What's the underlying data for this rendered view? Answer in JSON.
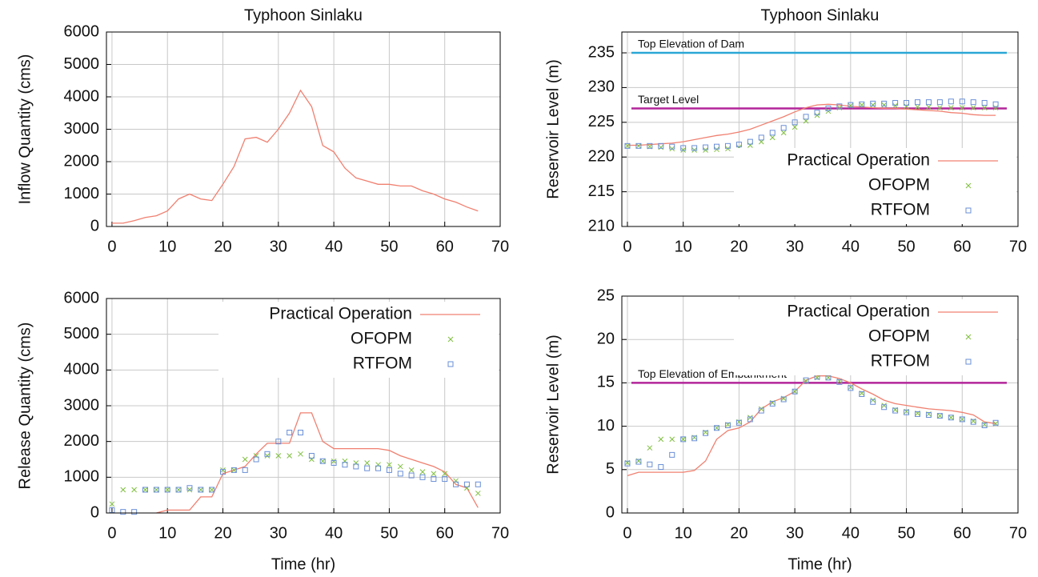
{
  "chart_data": [
    {
      "type": "line",
      "title": "Typhoon Sinlaku",
      "ylabel": "Inflow Quantity (cms)",
      "xlim": [
        -1,
        70
      ],
      "xticks": [
        0,
        10,
        20,
        30,
        40,
        50,
        60,
        70
      ],
      "ylim": [
        0,
        6000
      ],
      "yticks": [
        0,
        1000,
        2000,
        3000,
        4000,
        5000,
        6000
      ],
      "grid": true,
      "x": [
        0,
        2,
        4,
        6,
        8,
        10,
        12,
        14,
        16,
        18,
        20,
        22,
        24,
        26,
        28,
        30,
        32,
        34,
        36,
        38,
        40,
        42,
        44,
        46,
        48,
        50,
        52,
        54,
        56,
        58,
        60,
        62,
        64,
        66
      ],
      "series": [
        {
          "name": null,
          "style": "line",
          "color": "#f08070",
          "values": [
            100,
            100,
            180,
            280,
            330,
            480,
            850,
            1000,
            850,
            800,
            1300,
            1850,
            2700,
            2750,
            2600,
            3000,
            3500,
            4200,
            3700,
            2500,
            2300,
            1800,
            1500,
            1400,
            1300,
            1300,
            1250,
            1250,
            1100,
            1000,
            850,
            750,
            600,
            480
          ]
        }
      ]
    },
    {
      "type": "line",
      "title": "Typhoon Sinlaku",
      "ylabel": "Reservoir Level (m)",
      "xlim": [
        -1,
        70
      ],
      "xticks": [
        0,
        10,
        20,
        30,
        40,
        50,
        60,
        70
      ],
      "ylim": [
        210,
        238
      ],
      "yticks": [
        210,
        215,
        220,
        225,
        230,
        235
      ],
      "grid": true,
      "legend": "lower right",
      "hlines": [
        {
          "value": 235,
          "label": "Top Elevation of Dam",
          "color": "#2aa7d6"
        },
        {
          "value": 227,
          "label": "Target Level",
          "color": "#b3259a"
        }
      ],
      "x": [
        0,
        2,
        4,
        6,
        8,
        10,
        12,
        14,
        16,
        18,
        20,
        22,
        24,
        26,
        28,
        30,
        32,
        34,
        36,
        38,
        40,
        42,
        44,
        46,
        48,
        50,
        52,
        54,
        56,
        58,
        60,
        62,
        64,
        66
      ],
      "series": [
        {
          "name": "Practical Operation",
          "style": "line",
          "color": "#f08070",
          "values": [
            221.7,
            221.7,
            221.8,
            221.9,
            222,
            222.2,
            222.5,
            222.8,
            223.1,
            223.3,
            223.6,
            224,
            224.6,
            225.2,
            225.8,
            226.5,
            227.1,
            227.5,
            227.6,
            227.5,
            227.3,
            227.2,
            227.1,
            227,
            227,
            226.9,
            226.8,
            226.7,
            226.6,
            226.4,
            226.3,
            226.1,
            226,
            226
          ]
        },
        {
          "name": "OFOPM",
          "style": "cross",
          "color": "#7fbf3f",
          "values": [
            221.6,
            221.6,
            221.5,
            221.4,
            221.2,
            221,
            221,
            221,
            221.1,
            221.2,
            221.4,
            221.7,
            222.2,
            222.8,
            223.5,
            224.3,
            225.2,
            226,
            226.6,
            227.1,
            227.4,
            227.5,
            227.5,
            227.5,
            227.4,
            227.3,
            227.2,
            227.2,
            227.1,
            227.1,
            227.1,
            227.1,
            227.1,
            227.1
          ]
        },
        {
          "name": "RTFOM",
          "style": "square",
          "color": "#6a8fd6",
          "values": [
            221.6,
            221.6,
            221.6,
            221.6,
            221.5,
            221.3,
            221.3,
            221.4,
            221.5,
            221.6,
            221.8,
            222.2,
            222.8,
            223.5,
            224.2,
            225,
            225.8,
            226.4,
            227,
            227.3,
            227.5,
            227.6,
            227.7,
            227.7,
            227.8,
            227.8,
            227.9,
            227.9,
            227.9,
            228,
            228,
            227.9,
            227.8,
            227.6
          ]
        }
      ]
    },
    {
      "type": "line",
      "ylabel": "Release Quantity (cms)",
      "xlabel": "Time (hr)",
      "xlim": [
        -1,
        70
      ],
      "xticks": [
        0,
        10,
        20,
        30,
        40,
        50,
        60,
        70
      ],
      "ylim": [
        0,
        6000
      ],
      "yticks": [
        0,
        1000,
        2000,
        3000,
        4000,
        5000,
        6000
      ],
      "grid": true,
      "legend": "upper right",
      "x": [
        0,
        2,
        4,
        6,
        8,
        10,
        12,
        14,
        16,
        18,
        20,
        22,
        24,
        26,
        28,
        30,
        32,
        34,
        36,
        38,
        40,
        42,
        44,
        46,
        48,
        50,
        52,
        54,
        56,
        58,
        60,
        62,
        64,
        66
      ],
      "series": [
        {
          "name": "Practical Operation",
          "style": "line",
          "color": "#f08070",
          "values": [
            null,
            null,
            null,
            null,
            0,
            80,
            80,
            80,
            450,
            450,
            1100,
            1200,
            1300,
            1650,
            1950,
            1950,
            1950,
            2800,
            2800,
            2000,
            1800,
            1800,
            1800,
            1800,
            1800,
            1750,
            1600,
            1500,
            1400,
            1300,
            1150,
            800,
            700,
            150
          ]
        },
        {
          "name": "OFOPM",
          "style": "cross",
          "color": "#7fbf3f",
          "values": [
            250,
            650,
            650,
            650,
            650,
            650,
            650,
            650,
            650,
            650,
            1200,
            1200,
            1500,
            1600,
            1600,
            1600,
            1600,
            1650,
            1500,
            1450,
            1450,
            1450,
            1400,
            1400,
            1350,
            1350,
            1300,
            1200,
            1150,
            1100,
            1100,
            900,
            700,
            550
          ]
        },
        {
          "name": "RTFOM",
          "style": "square",
          "color": "#6a8fd6",
          "values": [
            80,
            30,
            30,
            650,
            650,
            650,
            650,
            700,
            650,
            650,
            1150,
            1200,
            1200,
            1500,
            1650,
            2000,
            2250,
            2250,
            1600,
            1450,
            1400,
            1350,
            1300,
            1250,
            1250,
            1200,
            1100,
            1050,
            1000,
            950,
            950,
            800,
            800,
            800
          ]
        }
      ]
    },
    {
      "type": "line",
      "ylabel": "Reservoir Level (m)",
      "xlabel": "Time (hr)",
      "xlim": [
        -1,
        70
      ],
      "xticks": [
        0,
        10,
        20,
        30,
        40,
        50,
        60,
        70
      ],
      "ylim": [
        0,
        25
      ],
      "yticks": [
        0,
        5,
        10,
        15,
        20,
        25
      ],
      "grid": true,
      "legend": "upper right",
      "hlines": [
        {
          "value": 15,
          "label": "Top Elevation of Embankment",
          "color": "#b3259a"
        }
      ],
      "x": [
        0,
        2,
        4,
        6,
        8,
        10,
        12,
        14,
        16,
        18,
        20,
        22,
        24,
        26,
        28,
        30,
        32,
        34,
        36,
        38,
        40,
        42,
        44,
        46,
        48,
        50,
        52,
        54,
        56,
        58,
        60,
        62,
        64,
        66
      ],
      "series": [
        {
          "name": "Practical Operation",
          "style": "line",
          "color": "#f08070",
          "values": [
            4.3,
            4.7,
            4.7,
            4.7,
            4.7,
            4.7,
            4.9,
            6,
            8.5,
            9.5,
            9.8,
            10.5,
            12,
            12.8,
            13.3,
            14,
            15.3,
            15.8,
            15.8,
            15.5,
            15,
            14.3,
            13.7,
            13,
            12.6,
            12.4,
            12.2,
            12,
            11.9,
            11.8,
            11.6,
            11.3,
            10.5,
            10.3
          ]
        },
        {
          "name": "OFOPM",
          "style": "cross",
          "color": "#7fbf3f",
          "values": [
            5.8,
            6,
            7.5,
            8.5,
            8.5,
            8.5,
            8.7,
            9.3,
            9.8,
            10.2,
            10.5,
            11,
            12,
            12.7,
            13.2,
            14,
            15.2,
            15.6,
            15.6,
            15.2,
            14.5,
            13.8,
            13,
            12.4,
            11.9,
            11.7,
            11.5,
            11.4,
            11.2,
            11,
            10.8,
            10.6,
            10.2,
            10.3
          ]
        },
        {
          "name": "RTFOM",
          "style": "square",
          "color": "#6a8fd6",
          "values": [
            5.7,
            5.9,
            5.6,
            5.3,
            6.7,
            8.5,
            8.6,
            9.2,
            9.8,
            10.1,
            10.4,
            10.8,
            11.8,
            12.6,
            13.1,
            14,
            15.3,
            15.7,
            15.6,
            15.1,
            14.4,
            13.7,
            12.8,
            12.2,
            11.8,
            11.6,
            11.4,
            11.3,
            11.2,
            11,
            10.8,
            10.5,
            10.1,
            10.4
          ]
        }
      ]
    }
  ]
}
